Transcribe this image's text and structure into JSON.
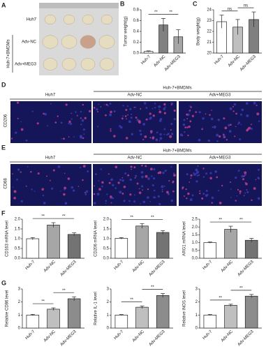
{
  "panel_a": {
    "label": "A",
    "rows": [
      "Huh7",
      "Adv-NC",
      "Adv+MEG3"
    ],
    "group": "Huh-7+BMDMs"
  },
  "panel_d": {
    "label": "D",
    "stain": "CD206",
    "control": "Huh7",
    "group": "Huh-7+BMDMs",
    "conditions": [
      "Adv-NC",
      "Adv+MEG3"
    ]
  },
  "panel_e": {
    "label": "E",
    "stain": "CD68",
    "control": "Huh7",
    "group": "Huh-7+BMDMs",
    "conditions": [
      "Adv-NC",
      "Adv+MEG3"
    ]
  },
  "chart_data": [
    {
      "type": "bar",
      "label": "B",
      "ylabel": "Tumor weight(g)",
      "categories": [
        "Huh-7",
        "Adv-NC",
        "Adv-MEG3"
      ],
      "values": [
        0.03,
        0.52,
        0.3
      ],
      "errors": [
        0.01,
        0.12,
        0.13
      ],
      "colors": [
        "#ffffff",
        "#808080",
        "#a6a6a6"
      ],
      "ylim": [
        0,
        0.8
      ],
      "yticks": [
        {
          "value": 0,
          "label": "0.0"
        },
        0.2,
        0.4,
        0.6,
        0.8
      ],
      "annotations": [
        "**",
        "**"
      ]
    },
    {
      "type": "bar",
      "label": "C",
      "ylabel": "Body weight(g)",
      "categories": [
        "Huh-7",
        "Adv-NC",
        "Adv-MEG3"
      ],
      "values": [
        22.9,
        22.4,
        23.1
      ],
      "errors": [
        0.6,
        0.7,
        0.7
      ],
      "colors": [
        "#ffffff",
        "#bfbfbf",
        "#808080"
      ],
      "ylim": [
        20,
        24
      ],
      "yticks": [
        20,
        21,
        22,
        23,
        24
      ],
      "annotations": [
        "ns",
        "ns"
      ]
    },
    {
      "type": "bar",
      "label": "F",
      "ylabel": "CD163 mRNA level",
      "categories": [
        "Huh-7",
        "Adv-NC",
        "Adv-MEG3"
      ],
      "values": [
        1.0,
        1.7,
        1.22
      ],
      "errors": [
        0.06,
        0.12,
        0.08
      ],
      "colors": [
        "#ffffff",
        "#a6a6a6",
        "#737373"
      ],
      "ylim": [
        0,
        2
      ],
      "yticks": [
        {
          "value": 0,
          "label": "0.0"
        },
        0.5,
        {
          "value": 1,
          "label": "1.0"
        },
        1.5,
        {
          "value": 2,
          "label": "2.0"
        }
      ],
      "annotations": [
        "**",
        "**"
      ]
    },
    {
      "type": "bar",
      "label": null,
      "ylabel": "CD206 mRNA level",
      "categories": [
        "Huh-7",
        "Adv-NC",
        "Adv-MEG3"
      ],
      "values": [
        1.02,
        1.65,
        1.32
      ],
      "errors": [
        0.04,
        0.12,
        0.09
      ],
      "colors": [
        "#ffffff",
        "#a6a6a6",
        "#737373"
      ],
      "ylim": [
        0,
        2
      ],
      "yticks": [
        {
          "value": 0,
          "label": "0.0"
        },
        0.5,
        {
          "value": 1,
          "label": "1.0"
        },
        1.5,
        {
          "value": 2,
          "label": "2.0"
        }
      ],
      "annotations": [
        "**",
        "**"
      ]
    },
    {
      "type": "bar",
      "label": null,
      "ylabel": "ARG1 mRNA level",
      "categories": [
        "Huh-7",
        "Adv-NC",
        "Adv-MEG3"
      ],
      "values": [
        1.0,
        1.85,
        1.15
      ],
      "errors": [
        0.04,
        0.2,
        0.12
      ],
      "colors": [
        "#ffffff",
        "#a6a6a6",
        "#737373"
      ],
      "ylim": [
        0,
        2.5
      ],
      "yticks": [
        {
          "value": 0,
          "label": "0.0"
        },
        0.5,
        {
          "value": 1,
          "label": "1.0"
        },
        1.5,
        {
          "value": 2,
          "label": "2.0"
        },
        2.5
      ],
      "annotations": [
        "**",
        "**"
      ]
    },
    {
      "type": "bar",
      "label": "G",
      "ylabel": "Relative CD86 level",
      "categories": [
        "Huh-7",
        "Adv-NC",
        "Adv-MEG3"
      ],
      "values": [
        1.0,
        1.45,
        2.25
      ],
      "errors": [
        0.05,
        0.1,
        0.15
      ],
      "colors": [
        "#ffffff",
        "#bfbfbf",
        "#8c8c8c"
      ],
      "ylim": [
        0,
        3
      ],
      "yticks": [
        0,
        1,
        2,
        3
      ],
      "annotations": [
        "**",
        "**"
      ]
    },
    {
      "type": "bar",
      "label": null,
      "ylabel": "Relative IL-1 level",
      "categories": [
        "Huh-7",
        "Adv-NC",
        "Adv-MEG3"
      ],
      "values": [
        1.0,
        1.6,
        2.5
      ],
      "errors": [
        0.04,
        0.1,
        0.15
      ],
      "colors": [
        "#ffffff",
        "#bfbfbf",
        "#8c8c8c"
      ],
      "ylim": [
        0,
        3
      ],
      "yticks": [
        0,
        1,
        2,
        3
      ],
      "annotations": [
        "**",
        "**"
      ]
    },
    {
      "type": "bar",
      "label": null,
      "ylabel": "Relative iNOS level",
      "categories": [
        "Huh-7",
        "Adv-NC",
        "Adv-MEG3"
      ],
      "values": [
        1.0,
        1.75,
        2.45
      ],
      "errors": [
        0.04,
        0.08,
        0.13
      ],
      "colors": [
        "#ffffff",
        "#bfbfbf",
        "#8c8c8c"
      ],
      "ylim": [
        0,
        3
      ],
      "yticks": [
        0,
        1,
        2,
        3
      ],
      "annotations": [
        "**",
        "**"
      ]
    }
  ]
}
